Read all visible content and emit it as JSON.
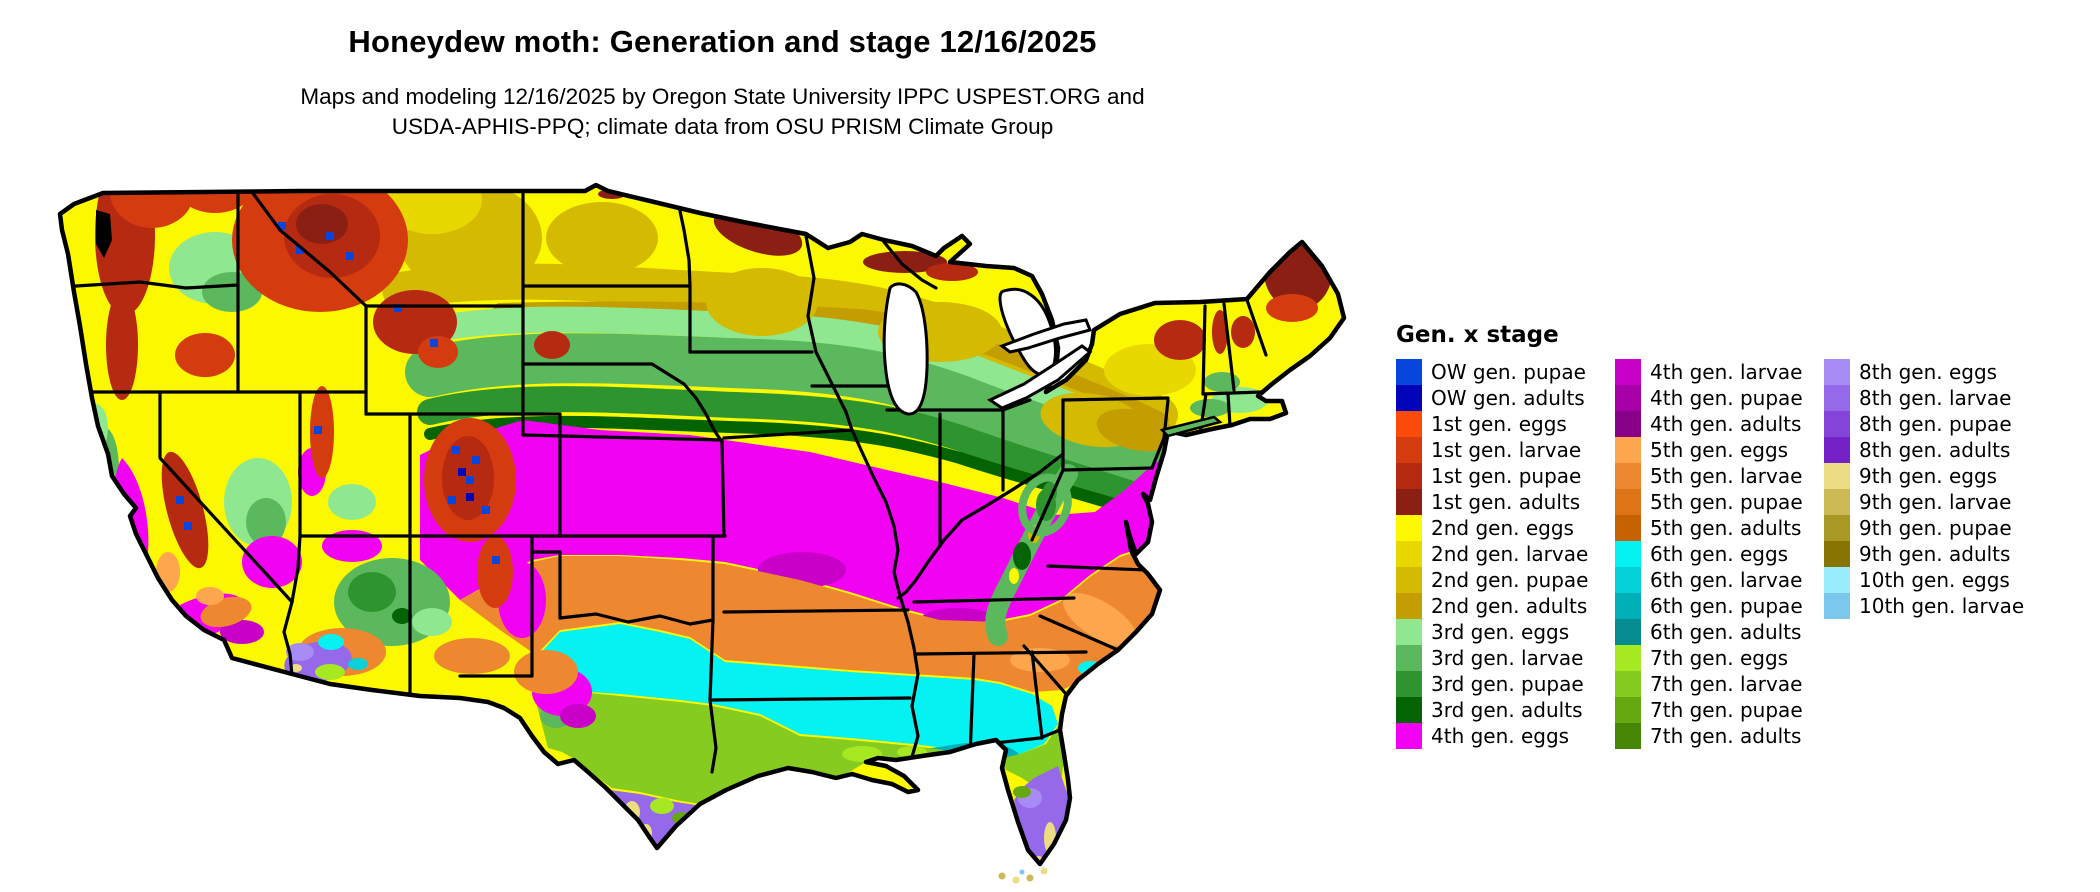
{
  "header": {
    "title": "Honeydew moth: Generation and stage 12/16/2025",
    "subtitle_line1": "Maps and modeling 12/16/2025 by Oregon State University IPPC USPEST.ORG and",
    "subtitle_line2": "USDA-APHIS-PPQ; climate data from OSU PRISM Climate Group"
  },
  "legend": {
    "title": "Gen. x stage",
    "columns": [
      [
        {
          "label": "OW gen. pupae",
          "color": "#0646dc"
        },
        {
          "label": "OW gen. adults",
          "color": "#0004b8"
        },
        {
          "label": "1st gen. eggs",
          "color": "#fc4a08"
        },
        {
          "label": "1st gen. larvae",
          "color": "#d43c10"
        },
        {
          "label": "1st gen. pupae",
          "color": "#b52a10"
        },
        {
          "label": "1st gen. adults",
          "color": "#8c1f14"
        },
        {
          "label": "2nd gen. eggs",
          "color": "#fbf800"
        },
        {
          "label": "2nd gen. larvae",
          "color": "#e8d800"
        },
        {
          "label": "2nd gen. pupae",
          "color": "#d4ba00"
        },
        {
          "label": "2nd gen. adults",
          "color": "#c49e00"
        },
        {
          "label": "3rd gen. eggs",
          "color": "#8fe88f"
        },
        {
          "label": "3rd gen. larvae",
          "color": "#5cb85c"
        },
        {
          "label": "3rd gen. pupae",
          "color": "#2e9430"
        },
        {
          "label": "3rd gen. adults",
          "color": "#046404"
        },
        {
          "label": "4th gen. eggs",
          "color": "#f202f2"
        }
      ],
      [
        {
          "label": "4th gen. larvae",
          "color": "#c800c8"
        },
        {
          "label": "4th gen. pupae",
          "color": "#a800a8"
        },
        {
          "label": "4th gen. adults",
          "color": "#880088"
        },
        {
          "label": "5th gen. eggs",
          "color": "#fda64e"
        },
        {
          "label": "5th gen. larvae",
          "color": "#ee8830"
        },
        {
          "label": "5th gen. pupae",
          "color": "#dd7418"
        },
        {
          "label": "5th gen. adults",
          "color": "#c66204"
        },
        {
          "label": "6th gen. eggs",
          "color": "#04f2f2"
        },
        {
          "label": "6th gen. larvae",
          "color": "#04d2d8"
        },
        {
          "label": "6th gen. pupae",
          "color": "#00b0b8"
        },
        {
          "label": "6th gen. adults",
          "color": "#048c90"
        },
        {
          "label": "7th gen. eggs",
          "color": "#a6e822"
        },
        {
          "label": "7th gen. larvae",
          "color": "#86cc20"
        },
        {
          "label": "7th gen. pupae",
          "color": "#66a810"
        },
        {
          "label": "7th gen. adults",
          "color": "#478604"
        }
      ],
      [
        {
          "label": "8th gen. eggs",
          "color": "#a78cf6"
        },
        {
          "label": "8th gen. larvae",
          "color": "#9668ea"
        },
        {
          "label": "8th gen. pupae",
          "color": "#8444d8"
        },
        {
          "label": "8th gen. adults",
          "color": "#7422c8"
        },
        {
          "label": "9th gen. eggs",
          "color": "#ecdc84"
        },
        {
          "label": "9th gen. larvae",
          "color": "#ccba56"
        },
        {
          "label": "9th gen. pupae",
          "color": "#a89824"
        },
        {
          "label": "9th gen. adults",
          "color": "#887402"
        },
        {
          "label": "10th gen. eggs",
          "color": "#9aecfc"
        },
        {
          "label": "10th gen. larvae",
          "color": "#7cc8ec"
        }
      ]
    ]
  },
  "map": {
    "type": "choropleth-raster",
    "area": "Continental United States",
    "outline_color": "#000000",
    "state_border_color": "#000000",
    "water_color": "#ffffff",
    "base_region": "2nd gen. eggs"
  }
}
